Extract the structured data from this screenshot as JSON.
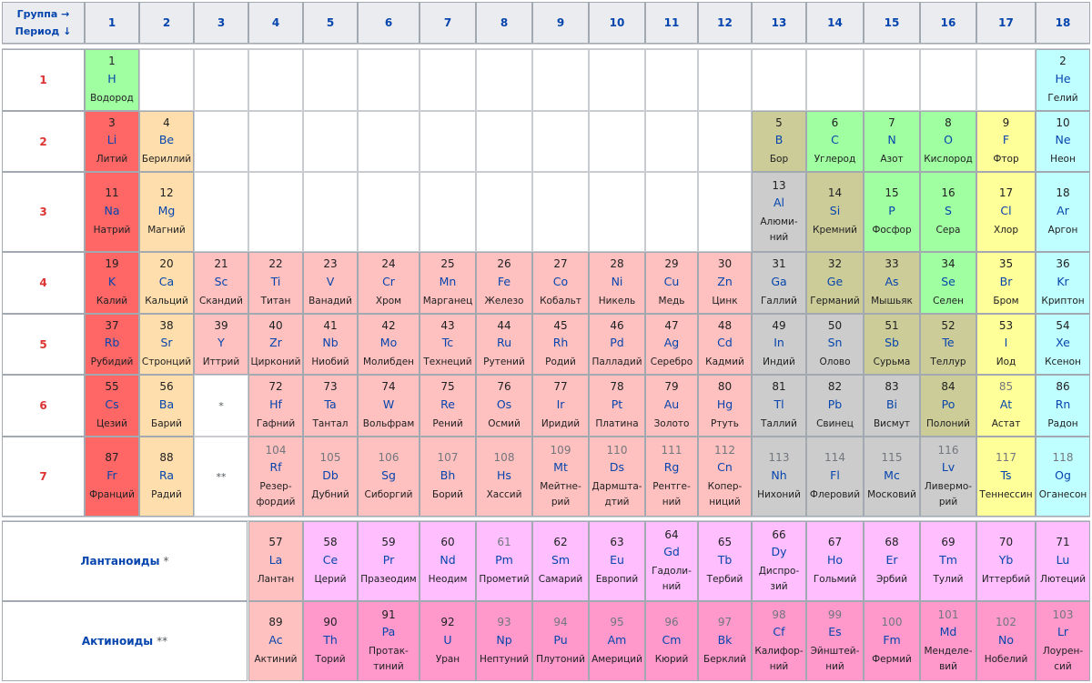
{
  "header": {
    "group_label": "Группа →",
    "period_label": "Период ↓",
    "groups": [
      "1",
      "2",
      "3",
      "4",
      "5",
      "6",
      "7",
      "8",
      "9",
      "10",
      "11",
      "12",
      "13",
      "14",
      "15",
      "16",
      "17",
      "18"
    ]
  },
  "periods": [
    "1",
    "2",
    "3",
    "4",
    "5",
    "6",
    "7"
  ],
  "colors": {
    "alkali": "#ff6666",
    "alkaline": "#ffdead",
    "transition": "#ffc0c0",
    "post": "#cccccc",
    "metalloid": "#cccc99",
    "nonmetal": "#a0ffa0",
    "halogen": "#ffff99",
    "noble": "#c0ffff",
    "lanthanide": "#ffbfff",
    "actinide": "#ff99cc"
  },
  "markers": {
    "lan": "*",
    "act": "**"
  },
  "series_labels": {
    "lanthanides": {
      "title": "Лантаноиды",
      "star": "*"
    },
    "actinides": {
      "title": "Актиноиды",
      "star": "**"
    }
  },
  "elements": [
    {
      "n": "1",
      "s": "H",
      "name": "Водород",
      "p": 1,
      "g": 1,
      "cat": "nonmetal"
    },
    {
      "n": "2",
      "s": "He",
      "name": "Гелий",
      "p": 1,
      "g": 18,
      "cat": "noble"
    },
    {
      "n": "3",
      "s": "Li",
      "name": "Литий",
      "p": 2,
      "g": 1,
      "cat": "alkali"
    },
    {
      "n": "4",
      "s": "Be",
      "name": "Бериллий",
      "p": 2,
      "g": 2,
      "cat": "alkaline"
    },
    {
      "n": "5",
      "s": "B",
      "name": "Бор",
      "p": 2,
      "g": 13,
      "cat": "metalloid"
    },
    {
      "n": "6",
      "s": "C",
      "name": "Углерод",
      "p": 2,
      "g": 14,
      "cat": "nonmetal"
    },
    {
      "n": "7",
      "s": "N",
      "name": "Азот",
      "p": 2,
      "g": 15,
      "cat": "nonmetal"
    },
    {
      "n": "8",
      "s": "O",
      "name": "Кислород",
      "p": 2,
      "g": 16,
      "cat": "nonmetal"
    },
    {
      "n": "9",
      "s": "F",
      "name": "Фтор",
      "p": 2,
      "g": 17,
      "cat": "halogen"
    },
    {
      "n": "10",
      "s": "Ne",
      "name": "Неон",
      "p": 2,
      "g": 18,
      "cat": "noble"
    },
    {
      "n": "11",
      "s": "Na",
      "name": "Натрий",
      "p": 3,
      "g": 1,
      "cat": "alkali"
    },
    {
      "n": "12",
      "s": "Mg",
      "name": "Магний",
      "p": 3,
      "g": 2,
      "cat": "alkaline"
    },
    {
      "n": "13",
      "s": "Al",
      "name": "Алюми-\nний",
      "p": 3,
      "g": 13,
      "cat": "post"
    },
    {
      "n": "14",
      "s": "Si",
      "name": "Кремний",
      "p": 3,
      "g": 14,
      "cat": "metalloid"
    },
    {
      "n": "15",
      "s": "P",
      "name": "Фосфор",
      "p": 3,
      "g": 15,
      "cat": "nonmetal"
    },
    {
      "n": "16",
      "s": "S",
      "name": "Сера",
      "p": 3,
      "g": 16,
      "cat": "nonmetal"
    },
    {
      "n": "17",
      "s": "Cl",
      "name": "Хлор",
      "p": 3,
      "g": 17,
      "cat": "halogen"
    },
    {
      "n": "18",
      "s": "Ar",
      "name": "Аргон",
      "p": 3,
      "g": 18,
      "cat": "noble"
    },
    {
      "n": "19",
      "s": "K",
      "name": "Калий",
      "p": 4,
      "g": 1,
      "cat": "alkali"
    },
    {
      "n": "20",
      "s": "Ca",
      "name": "Кальций",
      "p": 4,
      "g": 2,
      "cat": "alkaline"
    },
    {
      "n": "21",
      "s": "Sc",
      "name": "Скандий",
      "p": 4,
      "g": 3,
      "cat": "transition"
    },
    {
      "n": "22",
      "s": "Ti",
      "name": "Титан",
      "p": 4,
      "g": 4,
      "cat": "transition"
    },
    {
      "n": "23",
      "s": "V",
      "name": "Ванадий",
      "p": 4,
      "g": 5,
      "cat": "transition"
    },
    {
      "n": "24",
      "s": "Cr",
      "name": "Хром",
      "p": 4,
      "g": 6,
      "cat": "transition"
    },
    {
      "n": "25",
      "s": "Mn",
      "name": "Марганец",
      "p": 4,
      "g": 7,
      "cat": "transition"
    },
    {
      "n": "26",
      "s": "Fe",
      "name": "Железо",
      "p": 4,
      "g": 8,
      "cat": "transition"
    },
    {
      "n": "27",
      "s": "Co",
      "name": "Кобальт",
      "p": 4,
      "g": 9,
      "cat": "transition"
    },
    {
      "n": "28",
      "s": "Ni",
      "name": "Никель",
      "p": 4,
      "g": 10,
      "cat": "transition"
    },
    {
      "n": "29",
      "s": "Cu",
      "name": "Медь",
      "p": 4,
      "g": 11,
      "cat": "transition"
    },
    {
      "n": "30",
      "s": "Zn",
      "name": "Цинк",
      "p": 4,
      "g": 12,
      "cat": "transition"
    },
    {
      "n": "31",
      "s": "Ga",
      "name": "Галлий",
      "p": 4,
      "g": 13,
      "cat": "post"
    },
    {
      "n": "32",
      "s": "Ge",
      "name": "Германий",
      "p": 4,
      "g": 14,
      "cat": "metalloid"
    },
    {
      "n": "33",
      "s": "As",
      "name": "Мышьяк",
      "p": 4,
      "g": 15,
      "cat": "metalloid"
    },
    {
      "n": "34",
      "s": "Se",
      "name": "Селен",
      "p": 4,
      "g": 16,
      "cat": "nonmetal"
    },
    {
      "n": "35",
      "s": "Br",
      "name": "Бром",
      "p": 4,
      "g": 17,
      "cat": "halogen"
    },
    {
      "n": "36",
      "s": "Kr",
      "name": "Криптон",
      "p": 4,
      "g": 18,
      "cat": "noble"
    },
    {
      "n": "37",
      "s": "Rb",
      "name": "Рубидий",
      "p": 5,
      "g": 1,
      "cat": "alkali"
    },
    {
      "n": "38",
      "s": "Sr",
      "name": "Стронций",
      "p": 5,
      "g": 2,
      "cat": "alkaline"
    },
    {
      "n": "39",
      "s": "Y",
      "name": "Иттрий",
      "p": 5,
      "g": 3,
      "cat": "transition"
    },
    {
      "n": "40",
      "s": "Zr",
      "name": "Цирконий",
      "p": 5,
      "g": 4,
      "cat": "transition"
    },
    {
      "n": "41",
      "s": "Nb",
      "name": "Ниобий",
      "p": 5,
      "g": 5,
      "cat": "transition"
    },
    {
      "n": "42",
      "s": "Mo",
      "name": "Молибден",
      "p": 5,
      "g": 6,
      "cat": "transition"
    },
    {
      "n": "43",
      "s": "Tc",
      "name": "Технеций",
      "p": 5,
      "g": 7,
      "cat": "transition"
    },
    {
      "n": "44",
      "s": "Ru",
      "name": "Рутений",
      "p": 5,
      "g": 8,
      "cat": "transition"
    },
    {
      "n": "45",
      "s": "Rh",
      "name": "Родий",
      "p": 5,
      "g": 9,
      "cat": "transition"
    },
    {
      "n": "46",
      "s": "Pd",
      "name": "Палладий",
      "p": 5,
      "g": 10,
      "cat": "transition"
    },
    {
      "n": "47",
      "s": "Ag",
      "name": "Серебро",
      "p": 5,
      "g": 11,
      "cat": "transition"
    },
    {
      "n": "48",
      "s": "Cd",
      "name": "Кадмий",
      "p": 5,
      "g": 12,
      "cat": "transition"
    },
    {
      "n": "49",
      "s": "In",
      "name": "Индий",
      "p": 5,
      "g": 13,
      "cat": "post"
    },
    {
      "n": "50",
      "s": "Sn",
      "name": "Олово",
      "p": 5,
      "g": 14,
      "cat": "post"
    },
    {
      "n": "51",
      "s": "Sb",
      "name": "Сурьма",
      "p": 5,
      "g": 15,
      "cat": "metalloid"
    },
    {
      "n": "52",
      "s": "Te",
      "name": "Теллур",
      "p": 5,
      "g": 16,
      "cat": "metalloid"
    },
    {
      "n": "53",
      "s": "I",
      "name": "Иод",
      "p": 5,
      "g": 17,
      "cat": "halogen"
    },
    {
      "n": "54",
      "s": "Xe",
      "name": "Ксенон",
      "p": 5,
      "g": 18,
      "cat": "noble"
    },
    {
      "n": "55",
      "s": "Cs",
      "name": "Цезий",
      "p": 6,
      "g": 1,
      "cat": "alkali"
    },
    {
      "n": "56",
      "s": "Ba",
      "name": "Барий",
      "p": 6,
      "g": 2,
      "cat": "alkaline"
    },
    {
      "n": "72",
      "s": "Hf",
      "name": "Гафний",
      "p": 6,
      "g": 4,
      "cat": "transition"
    },
    {
      "n": "73",
      "s": "Ta",
      "name": "Тантал",
      "p": 6,
      "g": 5,
      "cat": "transition"
    },
    {
      "n": "74",
      "s": "W",
      "name": "Вольфрам",
      "p": 6,
      "g": 6,
      "cat": "transition"
    },
    {
      "n": "75",
      "s": "Re",
      "name": "Рений",
      "p": 6,
      "g": 7,
      "cat": "transition"
    },
    {
      "n": "76",
      "s": "Os",
      "name": "Осмий",
      "p": 6,
      "g": 8,
      "cat": "transition"
    },
    {
      "n": "77",
      "s": "Ir",
      "name": "Иридий",
      "p": 6,
      "g": 9,
      "cat": "transition"
    },
    {
      "n": "78",
      "s": "Pt",
      "name": "Платина",
      "p": 6,
      "g": 10,
      "cat": "transition"
    },
    {
      "n": "79",
      "s": "Au",
      "name": "Золото",
      "p": 6,
      "g": 11,
      "cat": "transition"
    },
    {
      "n": "80",
      "s": "Hg",
      "name": "Ртуть",
      "p": 6,
      "g": 12,
      "cat": "transition"
    },
    {
      "n": "81",
      "s": "Tl",
      "name": "Таллий",
      "p": 6,
      "g": 13,
      "cat": "post"
    },
    {
      "n": "82",
      "s": "Pb",
      "name": "Свинец",
      "p": 6,
      "g": 14,
      "cat": "post"
    },
    {
      "n": "83",
      "s": "Bi",
      "name": "Висмут",
      "p": 6,
      "g": 15,
      "cat": "post"
    },
    {
      "n": "84",
      "s": "Po",
      "name": "Полоний",
      "p": 6,
      "g": 16,
      "cat": "metalloid"
    },
    {
      "n": "85",
      "s": "At",
      "name": "Астат",
      "p": 6,
      "g": 17,
      "cat": "halogen",
      "synth": true
    },
    {
      "n": "86",
      "s": "Rn",
      "name": "Радон",
      "p": 6,
      "g": 18,
      "cat": "noble"
    },
    {
      "n": "87",
      "s": "Fr",
      "name": "Франций",
      "p": 7,
      "g": 1,
      "cat": "alkali"
    },
    {
      "n": "88",
      "s": "Ra",
      "name": "Радий",
      "p": 7,
      "g": 2,
      "cat": "alkaline"
    },
    {
      "n": "104",
      "s": "Rf",
      "name": "Резер-\nфордий",
      "p": 7,
      "g": 4,
      "cat": "transition",
      "synth": true
    },
    {
      "n": "105",
      "s": "Db",
      "name": "Дубний",
      "p": 7,
      "g": 5,
      "cat": "transition",
      "synth": true
    },
    {
      "n": "106",
      "s": "Sg",
      "name": "Сиборгий",
      "p": 7,
      "g": 6,
      "cat": "transition",
      "synth": true
    },
    {
      "n": "107",
      "s": "Bh",
      "name": "Борий",
      "p": 7,
      "g": 7,
      "cat": "transition",
      "synth": true
    },
    {
      "n": "108",
      "s": "Hs",
      "name": "Хассий",
      "p": 7,
      "g": 8,
      "cat": "transition",
      "synth": true
    },
    {
      "n": "109",
      "s": "Mt",
      "name": "Мейтне-\nрий",
      "p": 7,
      "g": 9,
      "cat": "transition",
      "synth": true
    },
    {
      "n": "110",
      "s": "Ds",
      "name": "Дармшта-\nдтий",
      "p": 7,
      "g": 10,
      "cat": "transition",
      "synth": true
    },
    {
      "n": "111",
      "s": "Rg",
      "name": "Рентге-\nний",
      "p": 7,
      "g": 11,
      "cat": "transition",
      "synth": true
    },
    {
      "n": "112",
      "s": "Cn",
      "name": "Копер-\nниций",
      "p": 7,
      "g": 12,
      "cat": "transition",
      "synth": true
    },
    {
      "n": "113",
      "s": "Nh",
      "name": "Нихоний",
      "p": 7,
      "g": 13,
      "cat": "post",
      "synth": true
    },
    {
      "n": "114",
      "s": "Fl",
      "name": "Флеровий",
      "p": 7,
      "g": 14,
      "cat": "post",
      "synth": true
    },
    {
      "n": "115",
      "s": "Mc",
      "name": "Московий",
      "p": 7,
      "g": 15,
      "cat": "post",
      "synth": true
    },
    {
      "n": "116",
      "s": "Lv",
      "name": "Ливермо-\nрий",
      "p": 7,
      "g": 16,
      "cat": "post",
      "synth": true
    },
    {
      "n": "117",
      "s": "Ts",
      "name": "Теннессин",
      "p": 7,
      "g": 17,
      "cat": "halogen",
      "synth": true
    },
    {
      "n": "118",
      "s": "Og",
      "name": "Оганесон",
      "p": 7,
      "g": 18,
      "cat": "noble",
      "synth": true
    }
  ],
  "lanthanides": [
    {
      "n": "57",
      "s": "La",
      "name": "Лантан",
      "cat": "transition"
    },
    {
      "n": "58",
      "s": "Ce",
      "name": "Церий",
      "cat": "lanthanide"
    },
    {
      "n": "59",
      "s": "Pr",
      "name": "Празеодим",
      "cat": "lanthanide"
    },
    {
      "n": "60",
      "s": "Nd",
      "name": "Неодим",
      "cat": "lanthanide"
    },
    {
      "n": "61",
      "s": "Pm",
      "name": "Прометий",
      "cat": "lanthanide",
      "synth": true
    },
    {
      "n": "62",
      "s": "Sm",
      "name": "Самарий",
      "cat": "lanthanide"
    },
    {
      "n": "63",
      "s": "Eu",
      "name": "Европий",
      "cat": "lanthanide"
    },
    {
      "n": "64",
      "s": "Gd",
      "name": "Гадоли-\nний",
      "cat": "lanthanide"
    },
    {
      "n": "65",
      "s": "Tb",
      "name": "Тербий",
      "cat": "lanthanide"
    },
    {
      "n": "66",
      "s": "Dy",
      "name": "Диспро-\nзий",
      "cat": "lanthanide"
    },
    {
      "n": "67",
      "s": "Ho",
      "name": "Гольмий",
      "cat": "lanthanide"
    },
    {
      "n": "68",
      "s": "Er",
      "name": "Эрбий",
      "cat": "lanthanide"
    },
    {
      "n": "69",
      "s": "Tm",
      "name": "Тулий",
      "cat": "lanthanide"
    },
    {
      "n": "70",
      "s": "Yb",
      "name": "Иттербий",
      "cat": "lanthanide"
    },
    {
      "n": "71",
      "s": "Lu",
      "name": "Лютеций",
      "cat": "lanthanide"
    }
  ],
  "actinides": [
    {
      "n": "89",
      "s": "Ac",
      "name": "Актиний",
      "cat": "transition"
    },
    {
      "n": "90",
      "s": "Th",
      "name": "Торий",
      "cat": "actinide"
    },
    {
      "n": "91",
      "s": "Pa",
      "name": "Протак-\nтиний",
      "cat": "actinide"
    },
    {
      "n": "92",
      "s": "U",
      "name": "Уран",
      "cat": "actinide"
    },
    {
      "n": "93",
      "s": "Np",
      "name": "Нептуний",
      "cat": "actinide",
      "synth": true
    },
    {
      "n": "94",
      "s": "Pu",
      "name": "Плутоний",
      "cat": "actinide",
      "synth": true
    },
    {
      "n": "95",
      "s": "Am",
      "name": "Америций",
      "cat": "actinide",
      "synth": true
    },
    {
      "n": "96",
      "s": "Cm",
      "name": "Кюрий",
      "cat": "actinide",
      "synth": true
    },
    {
      "n": "97",
      "s": "Bk",
      "name": "Берклий",
      "cat": "actinide",
      "synth": true
    },
    {
      "n": "98",
      "s": "Cf",
      "name": "Калифор-\nний",
      "cat": "actinide",
      "synth": true
    },
    {
      "n": "99",
      "s": "Es",
      "name": "Эйнштей-\nний",
      "cat": "actinide",
      "synth": true
    },
    {
      "n": "100",
      "s": "Fm",
      "name": "Фермий",
      "cat": "actinide",
      "synth": true
    },
    {
      "n": "101",
      "s": "Md",
      "name": "Менделе-\nвий",
      "cat": "actinide",
      "synth": true
    },
    {
      "n": "102",
      "s": "No",
      "name": "Нобелий",
      "cat": "actinide",
      "synth": true
    },
    {
      "n": "103",
      "s": "Lr",
      "name": "Лоурен-\nсий",
      "cat": "actinide",
      "synth": true
    }
  ]
}
